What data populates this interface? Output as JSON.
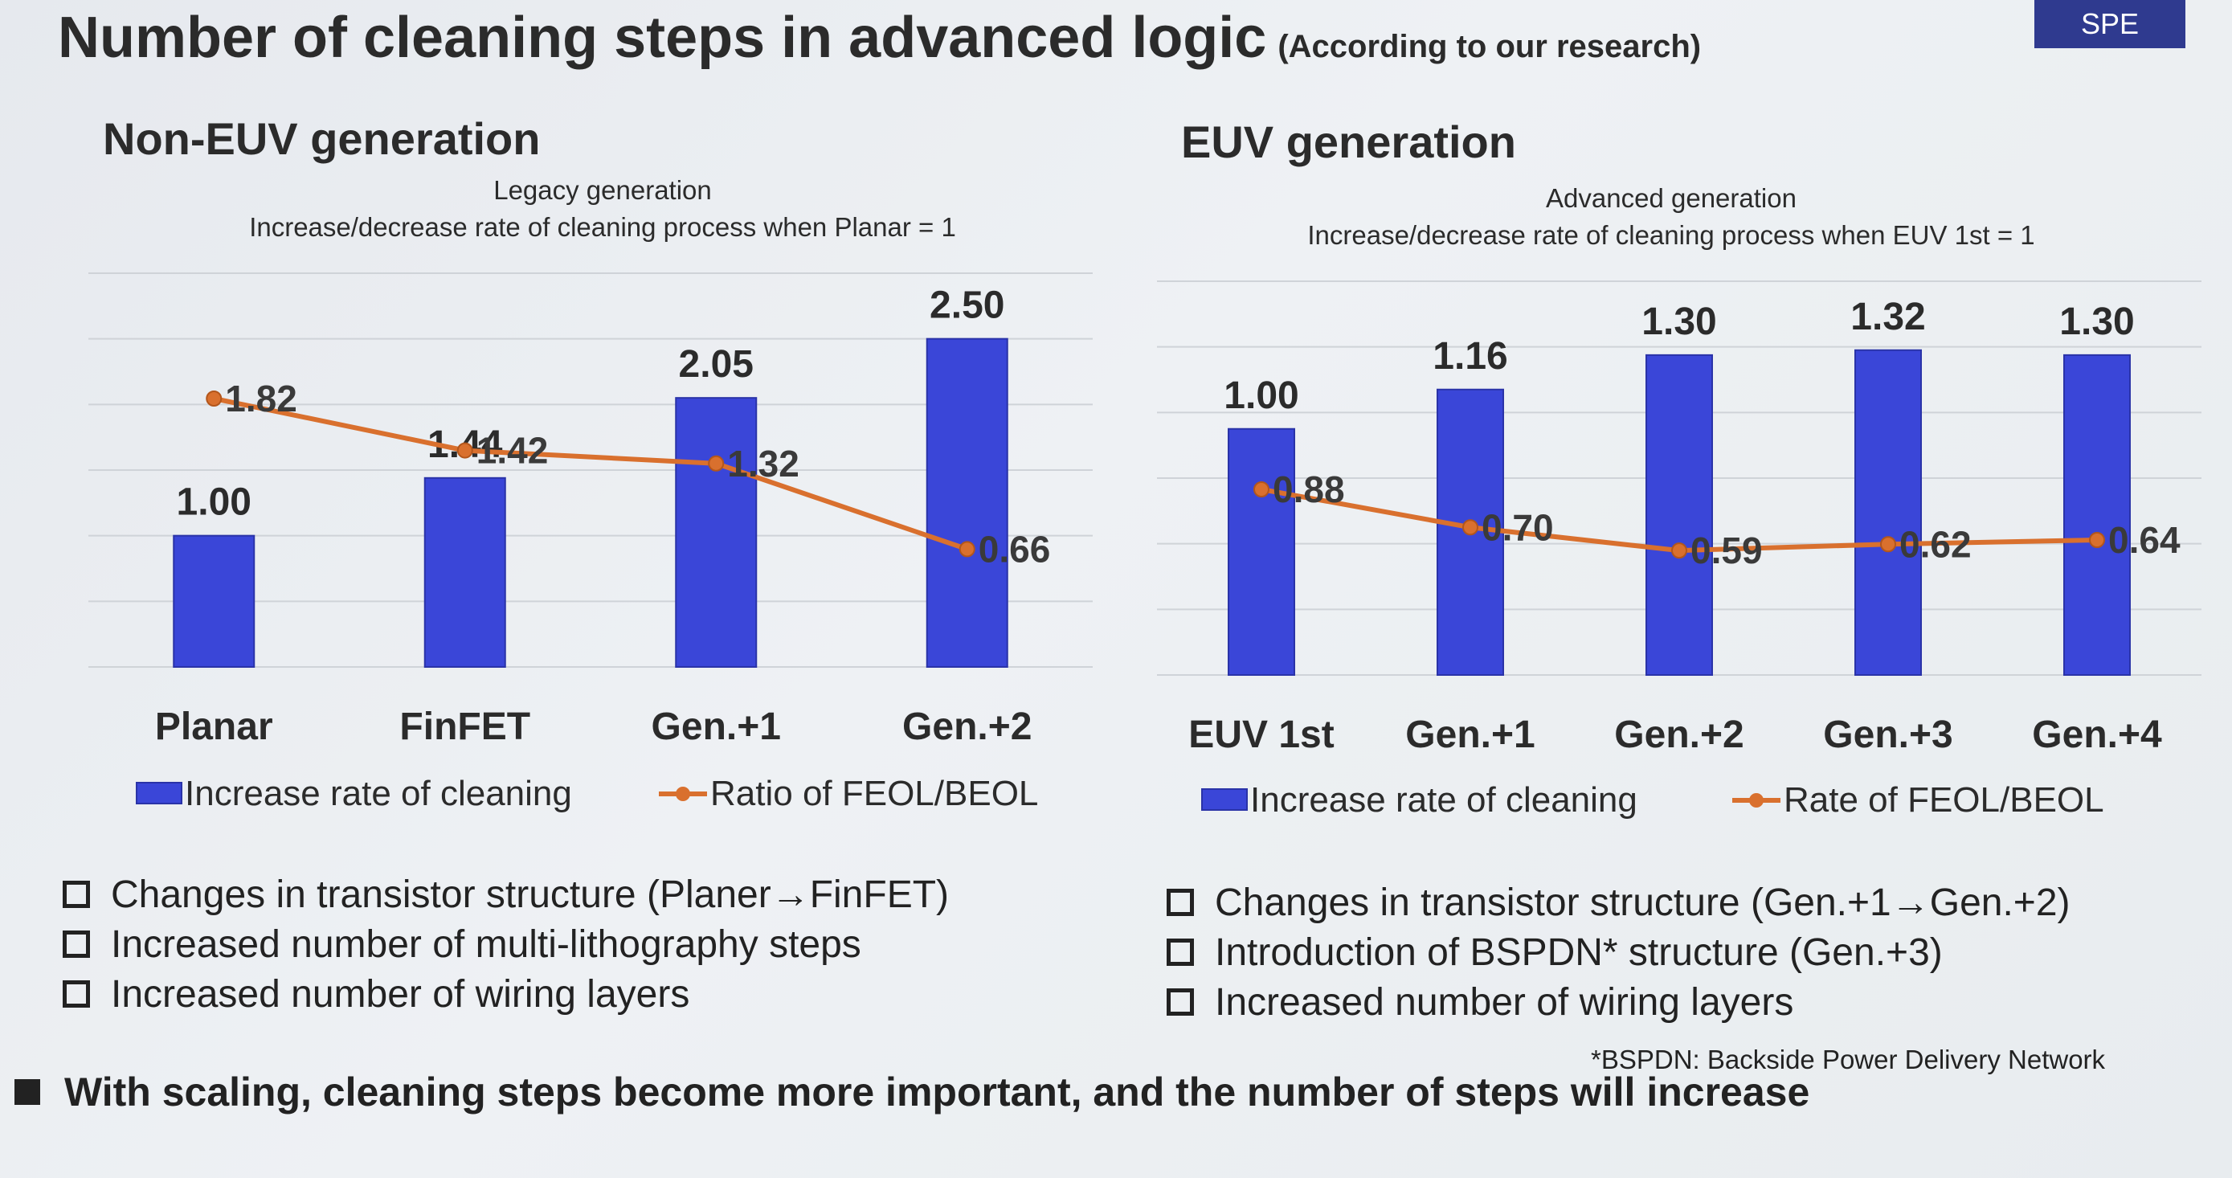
{
  "header": {
    "title": "Number of cleaning steps in advanced logic",
    "subtitle": "(According to our research)",
    "badge": "SPE"
  },
  "left": {
    "heading": "Non-EUV generation",
    "caption_line1": "Legacy generation",
    "caption_line2": "Increase/decrease rate of cleaning process when Planar = 1",
    "bullets": [
      "Changes in transistor structure (Planer→FinFET)",
      "Increased number of multi-lithography steps",
      "Increased number of wiring layers"
    ]
  },
  "right": {
    "heading": "EUV generation",
    "caption_line1": "Advanced generation",
    "caption_line2": "Increase/decrease rate of cleaning process when EUV 1st = 1",
    "bullets": [
      "Changes in transistor structure (Gen.+1→Gen.+2)",
      "Introduction of BSPDN* structure (Gen.+3)",
      "Increased number of wiring layers"
    ],
    "footnote": "*BSPDN: Backside Power Delivery Network"
  },
  "conclusion": "With scaling, cleaning steps become more important, and the number of steps will increase",
  "chart_data": [
    {
      "type": "bar",
      "categories": [
        "Planar",
        "FinFET",
        "Gen.+1",
        "Gen.+2"
      ],
      "series": [
        {
          "name": "Increase rate of cleaning",
          "kind": "bar",
          "color": "#3a46d8",
          "values": [
            1.0,
            1.44,
            2.05,
            2.5
          ],
          "labels": [
            "1.00",
            "1.44",
            "2.05",
            "2.50"
          ]
        },
        {
          "name": "Ratio of FEOL/BEOL",
          "kind": "line",
          "color": "#d9702e",
          "values": [
            1.82,
            1.42,
            1.32,
            0.66
          ],
          "labels": [
            "1.82",
            "1.42",
            "1.32",
            "0.66"
          ]
        }
      ],
      "ylim": [
        0,
        3
      ],
      "grid": true,
      "legend": "bottom"
    },
    {
      "type": "bar",
      "categories": [
        "EUV 1st",
        "Gen.+1",
        "Gen.+2",
        "Gen.+3",
        "Gen.+4"
      ],
      "series": [
        {
          "name": "Increase rate of cleaning",
          "kind": "bar",
          "color": "#3a46d8",
          "values": [
            1.0,
            1.16,
            1.3,
            1.32,
            1.3
          ],
          "labels": [
            "1.00",
            "1.16",
            "1.30",
            "1.32",
            "1.30"
          ]
        },
        {
          "name": "Rate of FEOL/BEOL",
          "kind": "line",
          "color": "#d9702e",
          "values": [
            0.88,
            0.7,
            0.59,
            0.62,
            0.64
          ],
          "labels": [
            "0.88",
            "0.70",
            "0.59",
            "0.62",
            "0.64"
          ]
        }
      ],
      "ylim": [
        0,
        1.6
      ],
      "grid": true,
      "legend": "bottom"
    }
  ]
}
